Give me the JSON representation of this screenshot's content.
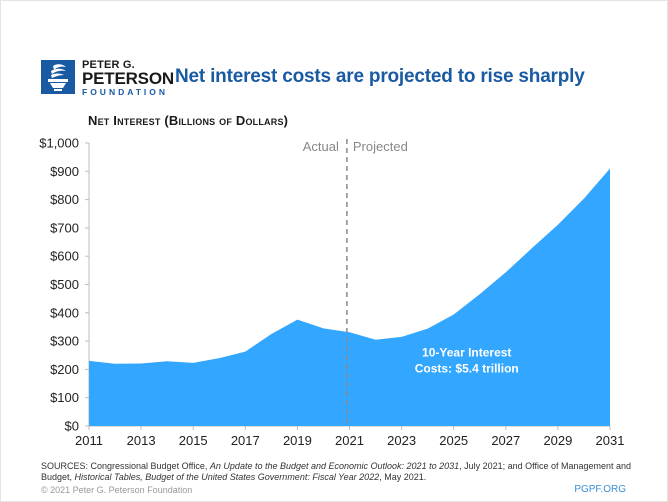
{
  "header": {
    "logo": {
      "icon": "torch-icon",
      "line1": "PETER G.",
      "line2": "PETERSON",
      "line3": "FOUNDATION"
    },
    "headline": "Net interest costs are projected to rise sharply"
  },
  "colors": {
    "brand_blue": "#1a5aa3",
    "area_fill": "#33a6ff",
    "divider": "#888888"
  },
  "chart_data": {
    "type": "area",
    "title": "Net Interest (Billions of Dollars)",
    "xlabel": "",
    "ylabel": "Net Interest (Billions of Dollars)",
    "x": [
      2011,
      2012,
      2013,
      2014,
      2015,
      2016,
      2017,
      2018,
      2019,
      2020,
      2021,
      2022,
      2023,
      2024,
      2025,
      2026,
      2027,
      2028,
      2029,
      2030,
      2031
    ],
    "series": [
      {
        "name": "Net Interest",
        "values": [
          230,
          220,
          221,
          229,
          223,
          240,
          263,
          325,
          376,
          345,
          331,
          305,
          315,
          344,
          394,
          466,
          543,
          628,
          711,
          804,
          910
        ]
      }
    ],
    "xlim": [
      2011,
      2031
    ],
    "ylim": [
      0,
      1000
    ],
    "x_ticks": [
      "2011",
      "2013",
      "2015",
      "2017",
      "2019",
      "2021",
      "2023",
      "2025",
      "2027",
      "2029",
      "2031"
    ],
    "y_ticks": [
      "$0",
      "$100",
      "$200",
      "$300",
      "$400",
      "$500",
      "$600",
      "$700",
      "$800",
      "$900",
      "$1,000"
    ],
    "y_tick_values": [
      0,
      100,
      200,
      300,
      400,
      500,
      600,
      700,
      800,
      900,
      1000
    ],
    "grid": false,
    "divider": {
      "x": 2020.9,
      "left_label": "Actual",
      "right_label": "Projected"
    },
    "annotation": {
      "line1": "10-Year Interest",
      "line2": "Costs: $5.4 trillion",
      "anchor_x": 2026,
      "anchor_y": 225
    }
  },
  "footer": {
    "sources_line1_a": "SOURCES: Congressional Budget Office, ",
    "sources_line1_b": "An Update to the Budget and Economic Outlook: 2021 to 2031",
    "sources_line1_c": ", July 2021; and Office of Management and",
    "sources_line2_a": "Budget, ",
    "sources_line2_b": "Historical Tables, Budget of the United States Government: Fiscal Year 2022",
    "sources_line2_c": ", May 2021.",
    "copyright": "© 2021 Peter G. Peterson Foundation",
    "site": "PGPF.ORG"
  }
}
